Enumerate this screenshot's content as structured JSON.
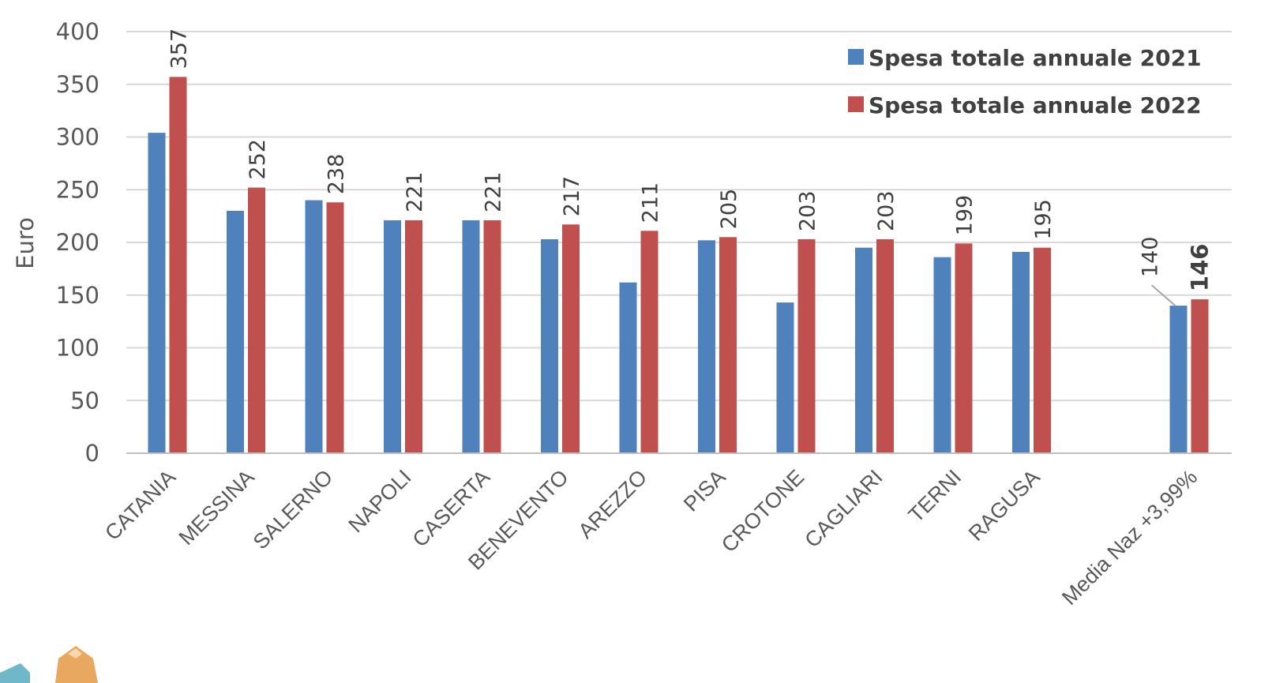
{
  "chart_data": {
    "type": "bar",
    "ylabel": "Euro",
    "ylim": [
      0,
      400
    ],
    "yticks": [
      "0",
      "50",
      "100",
      "150",
      "200",
      "250",
      "300",
      "350",
      "400"
    ],
    "grid": true,
    "legend_position": "top-right",
    "categories": [
      "CATANIA",
      "MESSINA",
      "SALERNO",
      "NAPOLI",
      "CASERTA",
      "BENEVENTO",
      "AREZZO",
      "PISA",
      "CROTONE",
      "CAGLIARI",
      "TERNI",
      "RAGUSA",
      "Media Naz +3,99%"
    ],
    "gap_after_index": 11,
    "series": [
      {
        "name": "Spesa totale annuale 2021",
        "color": "#4f81bd",
        "values": [
          304,
          230,
          240,
          221,
          221,
          203,
          162,
          202,
          143,
          195,
          186,
          191,
          140
        ],
        "data_labels": [
          "",
          "",
          "",
          "",
          "",
          "",
          "",
          "",
          "",
          "",
          "",
          "",
          "140"
        ]
      },
      {
        "name": "Spesa totale annuale 2022",
        "color": "#c0504d",
        "values": [
          357,
          252,
          238,
          221,
          221,
          217,
          211,
          205,
          203,
          203,
          199,
          195,
          146
        ],
        "data_labels": [
          "357",
          "252",
          "238",
          "221",
          "221",
          "217",
          "211",
          "205",
          "203",
          "203",
          "199",
          "195",
          "146"
        ]
      }
    ]
  },
  "colors": {
    "grid": "#d9d9d9",
    "axis": "#bfbfbf",
    "text": "#595959"
  }
}
